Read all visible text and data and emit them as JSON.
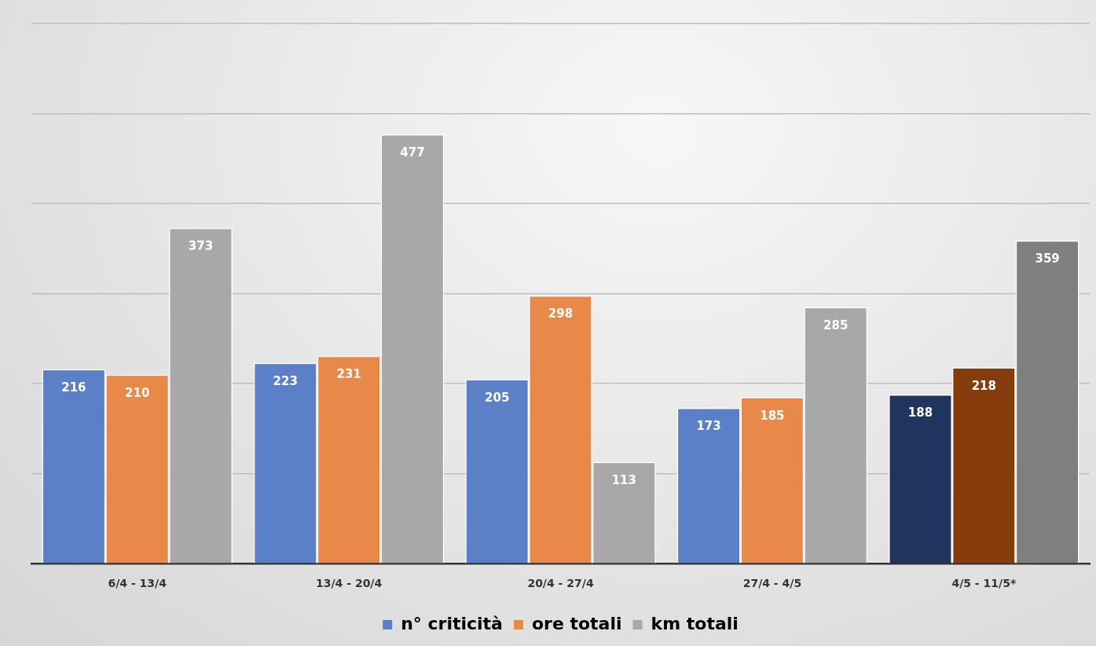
{
  "chart_data": {
    "type": "bar",
    "categories": [
      "6/4 - 13/4",
      "13/4 - 20/4",
      "20/4 - 27/4",
      "27/4 - 4/5",
      "4/5 - 11/5*"
    ],
    "series": [
      {
        "name": "n° criticità",
        "color": "#5b80c8",
        "colors": [
          "#5b80c8",
          "#5b80c8",
          "#5b80c8",
          "#5b80c8",
          "#1f355e"
        ],
        "values": [
          216,
          223,
          205,
          173,
          188
        ]
      },
      {
        "name": "ore totali",
        "color": "#e8894a",
        "colors": [
          "#e8894a",
          "#e8894a",
          "#e8894a",
          "#e8894a",
          "#843c0c"
        ],
        "values": [
          210,
          231,
          298,
          185,
          218
        ]
      },
      {
        "name": "km totali",
        "color": "#a8a8a8",
        "colors": [
          "#a8a8a8",
          "#a8a8a8",
          "#a8a8a8",
          "#a8a8a8",
          "#7f7f7f"
        ],
        "values": [
          373,
          477,
          113,
          285,
          359
        ]
      }
    ],
    "ylim": [
      0,
      600
    ],
    "tick_labels": "x",
    "grid": "y",
    "legend": "bottom",
    "data_labels": true
  }
}
